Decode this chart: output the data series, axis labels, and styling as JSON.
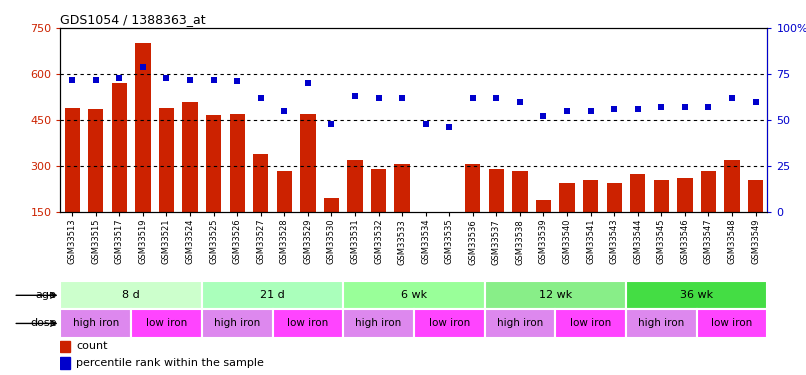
{
  "title": "GDS1054 / 1388363_at",
  "samples": [
    "GSM33513",
    "GSM33515",
    "GSM33517",
    "GSM33519",
    "GSM33521",
    "GSM33524",
    "GSM33525",
    "GSM33526",
    "GSM33527",
    "GSM33528",
    "GSM33529",
    "GSM33530",
    "GSM33531",
    "GSM33532",
    "GSM33533",
    "GSM33534",
    "GSM33535",
    "GSM33536",
    "GSM33537",
    "GSM33538",
    "GSM33539",
    "GSM33540",
    "GSM33541",
    "GSM33543",
    "GSM33544",
    "GSM33545",
    "GSM33546",
    "GSM33547",
    "GSM33548",
    "GSM33549"
  ],
  "bar_values": [
    490,
    485,
    570,
    700,
    490,
    510,
    465,
    470,
    340,
    285,
    470,
    195,
    320,
    290,
    305,
    150,
    150,
    305,
    290,
    285,
    190,
    245,
    255,
    245,
    275,
    255,
    260,
    285,
    320,
    255
  ],
  "percentile_values": [
    72,
    72,
    73,
    79,
    73,
    72,
    72,
    71,
    62,
    55,
    70,
    48,
    63,
    62,
    62,
    48,
    46,
    62,
    62,
    60,
    52,
    55,
    55,
    56,
    56,
    57,
    57,
    57,
    62,
    60
  ],
  "age_groups": [
    {
      "label": "8 d",
      "start": 0,
      "end": 6,
      "color": "#ccffcc"
    },
    {
      "label": "21 d",
      "start": 6,
      "end": 12,
      "color": "#aaffbb"
    },
    {
      "label": "6 wk",
      "start": 12,
      "end": 18,
      "color": "#99ff99"
    },
    {
      "label": "12 wk",
      "start": 18,
      "end": 24,
      "color": "#88ee88"
    },
    {
      "label": "36 wk",
      "start": 24,
      "end": 30,
      "color": "#44dd44"
    }
  ],
  "dose_groups": [
    {
      "label": "high iron",
      "start": 0,
      "end": 3,
      "color": "#dd88ee"
    },
    {
      "label": "low iron",
      "start": 3,
      "end": 6,
      "color": "#ff44ff"
    },
    {
      "label": "high iron",
      "start": 6,
      "end": 9,
      "color": "#dd88ee"
    },
    {
      "label": "low iron",
      "start": 9,
      "end": 12,
      "color": "#ff44ff"
    },
    {
      "label": "high iron",
      "start": 12,
      "end": 15,
      "color": "#dd88ee"
    },
    {
      "label": "low iron",
      "start": 15,
      "end": 18,
      "color": "#ff44ff"
    },
    {
      "label": "high iron",
      "start": 18,
      "end": 21,
      "color": "#dd88ee"
    },
    {
      "label": "low iron",
      "start": 21,
      "end": 24,
      "color": "#ff44ff"
    },
    {
      "label": "high iron",
      "start": 24,
      "end": 27,
      "color": "#dd88ee"
    },
    {
      "label": "low iron",
      "start": 27,
      "end": 30,
      "color": "#ff44ff"
    }
  ],
  "bar_color": "#cc2200",
  "dot_color": "#0000cc",
  "ylim_left": [
    150,
    750
  ],
  "ylim_right": [
    0,
    100
  ],
  "yticks_left": [
    150,
    300,
    450,
    600,
    750
  ],
  "yticks_right": [
    0,
    25,
    50,
    75,
    100
  ],
  "ytick_labels_right": [
    "0",
    "25",
    "50",
    "75",
    "100%"
  ],
  "hlines": [
    300,
    450,
    600
  ],
  "background_color": "#ffffff"
}
